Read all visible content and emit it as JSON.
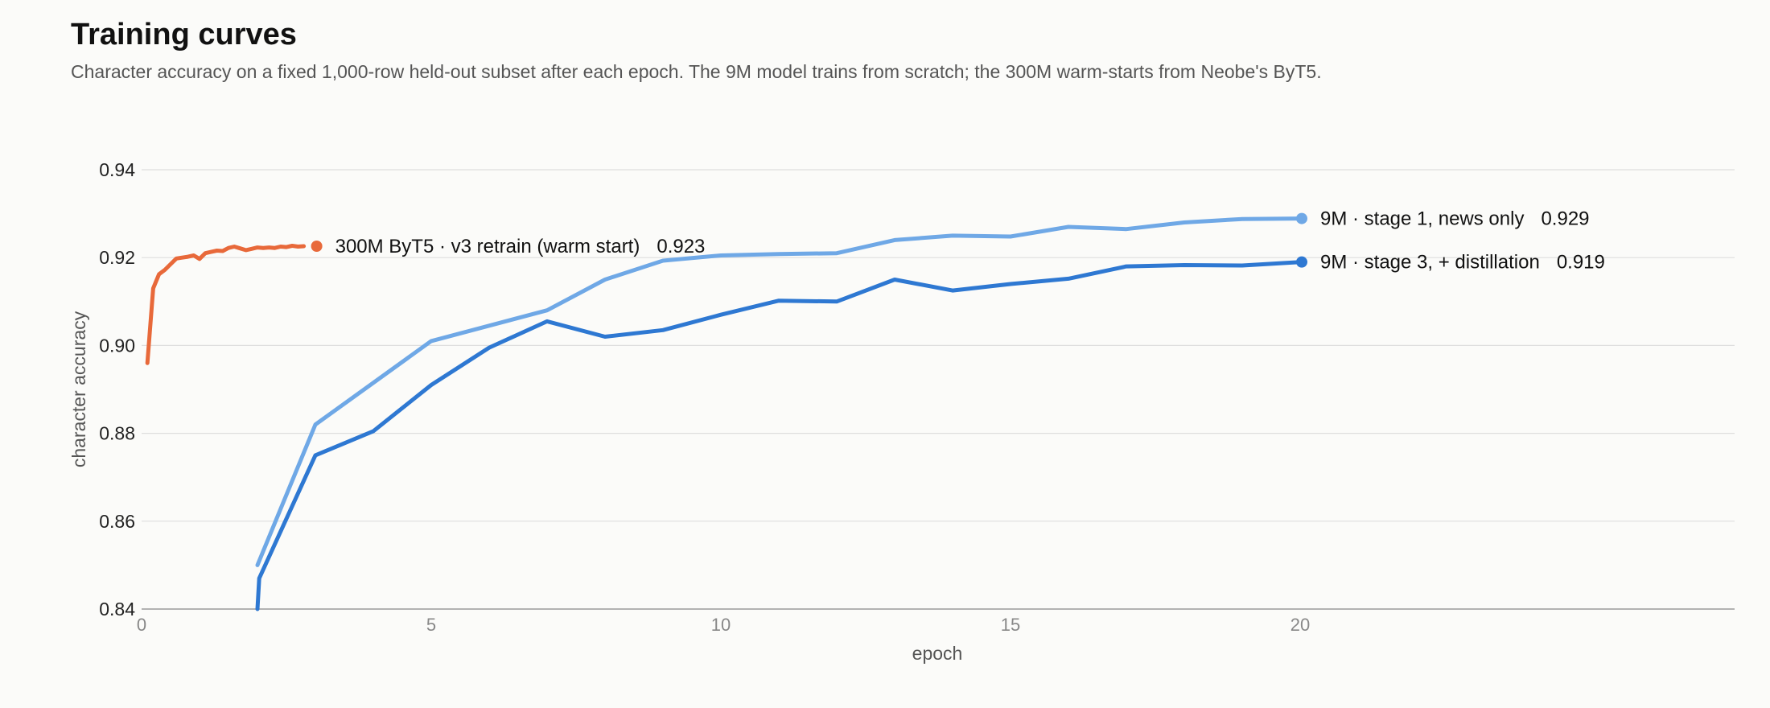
{
  "chart_data": {
    "type": "line",
    "title": "Training curves",
    "subtitle": "Character accuracy on a fixed 1,000-row held-out subset after each epoch. The 9M model trains from scratch; the 300M warm-starts from Neobe's ByT5.",
    "xlabel": "epoch",
    "ylabel": "character accuracy",
    "xlim": [
      0,
      27.5
    ],
    "ylim": [
      0.84,
      0.94
    ],
    "xticks": [
      "0",
      "5",
      "10",
      "15",
      "20"
    ],
    "yticks": [
      "0.84",
      "0.86",
      "0.88",
      "0.90",
      "0.92",
      "0.94"
    ],
    "grid": "horizontal",
    "legend": "direct labels at line ends",
    "series": [
      {
        "name": "300M ByT5 · v3 retrain (warm start)",
        "end_label": "0.923",
        "color": "#e8693a",
        "x": [
          0.1,
          0.2,
          0.3,
          0.4,
          0.5,
          0.6,
          0.7,
          0.8,
          0.9,
          1.0,
          1.1,
          1.2,
          1.3,
          1.4,
          1.5,
          1.6,
          1.7,
          1.8,
          1.9,
          2.0,
          2.1,
          2.2,
          2.3,
          2.4,
          2.5,
          2.6,
          2.7,
          2.8
        ],
        "y": [
          0.896,
          0.913,
          0.9162,
          0.9172,
          0.9185,
          0.9198,
          0.92,
          0.9202,
          0.9205,
          0.9197,
          0.921,
          0.9213,
          0.9216,
          0.9215,
          0.9222,
          0.9225,
          0.9221,
          0.9217,
          0.922,
          0.9223,
          0.9222,
          0.9223,
          0.9222,
          0.9225,
          0.9224,
          0.9227,
          0.9225,
          0.9226
        ]
      },
      {
        "name": "9M · stage 1, news only",
        "end_label": "0.929",
        "color": "#6fa8e6",
        "x": [
          2,
          3,
          4,
          5,
          6,
          7,
          8,
          9,
          10,
          11,
          12,
          13,
          14,
          15,
          16,
          17,
          18,
          19,
          20
        ],
        "y": [
          0.85,
          0.882,
          0.8915,
          0.901,
          0.9045,
          0.908,
          0.915,
          0.9193,
          0.9205,
          0.9208,
          0.921,
          0.924,
          0.925,
          0.9248,
          0.927,
          0.9265,
          0.928,
          0.9288,
          0.9289
        ]
      },
      {
        "name": "9M · stage 3, + distillation",
        "end_label": "0.919",
        "color": "#2e78d2",
        "x": [
          2,
          2.03,
          3,
          4,
          5,
          6,
          7,
          8,
          9,
          10,
          11,
          12,
          13,
          14,
          15,
          16,
          17,
          18,
          19,
          20
        ],
        "y": [
          0.84,
          0.847,
          0.875,
          0.8805,
          0.891,
          0.8995,
          0.9055,
          0.902,
          0.9035,
          0.907,
          0.9102,
          0.91,
          0.915,
          0.9125,
          0.914,
          0.9152,
          0.918,
          0.9183,
          0.9182,
          0.919
        ]
      }
    ]
  }
}
